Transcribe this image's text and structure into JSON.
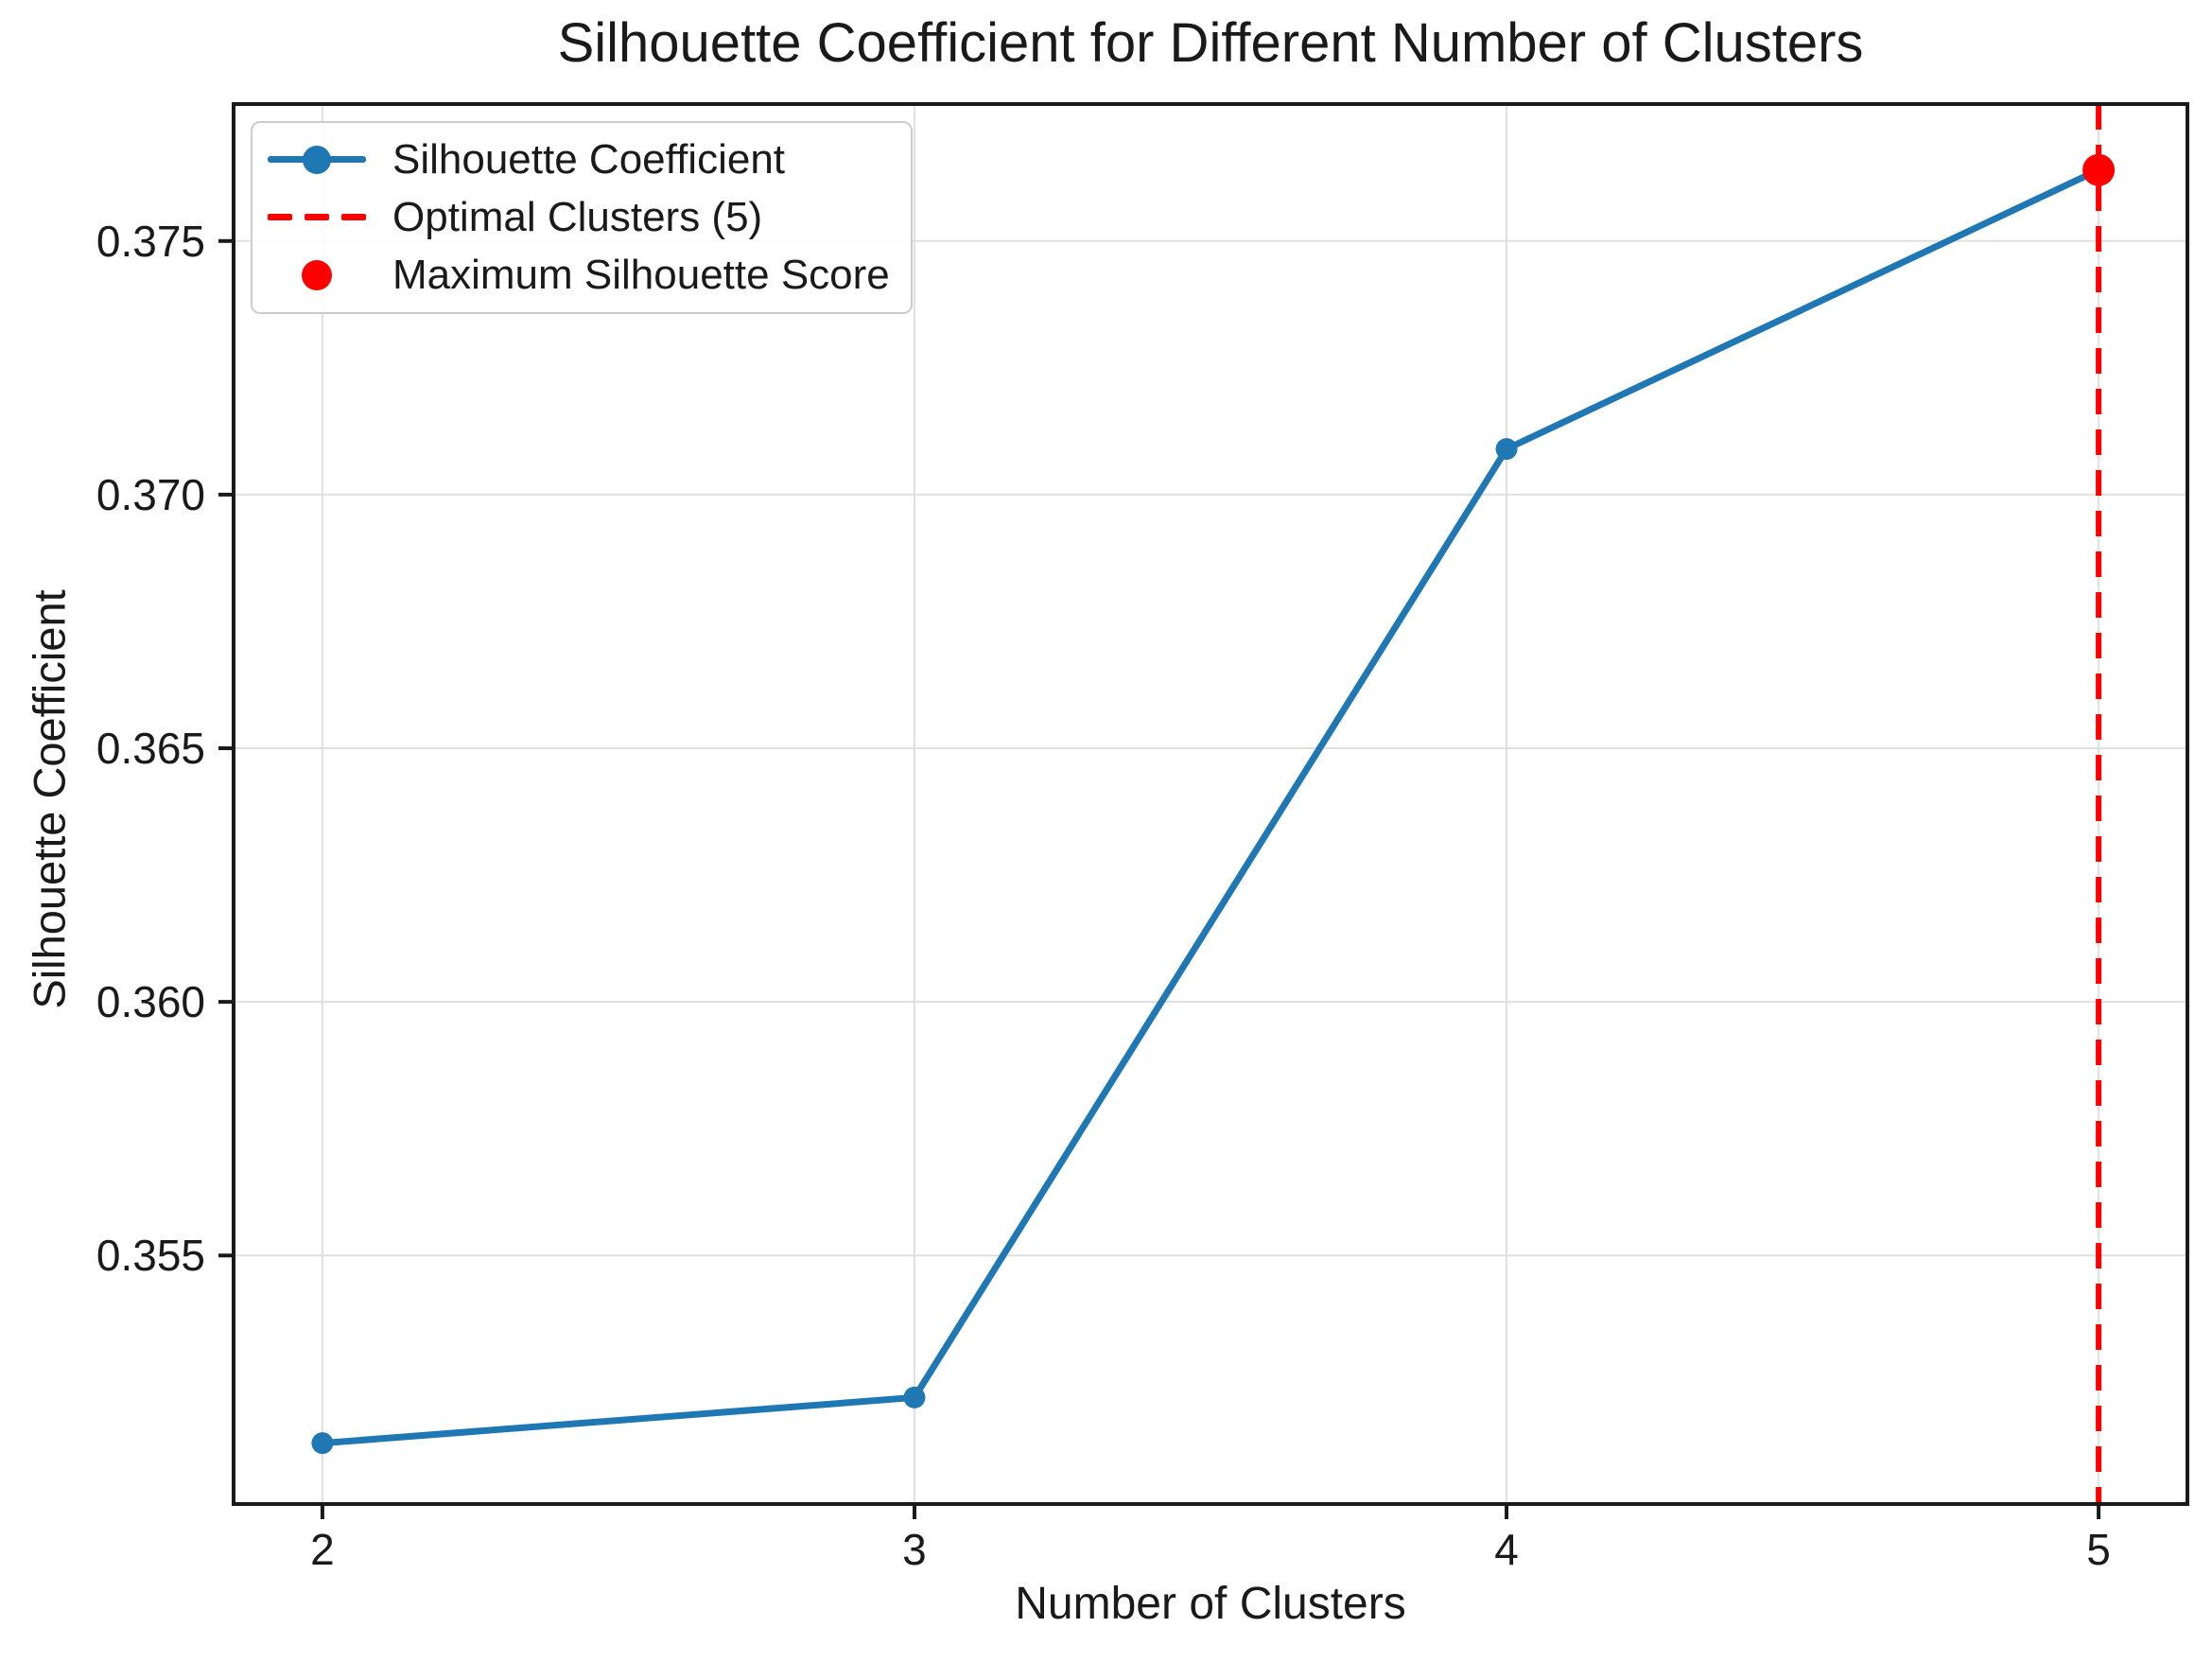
{
  "chart_data": {
    "type": "line",
    "title": "Silhouette Coefficient for Different Number of Clusters",
    "xlabel": "Number of Clusters",
    "ylabel": "Silhouette Coefficient",
    "x": [
      2,
      3,
      4,
      5
    ],
    "series": [
      {
        "name": "Silhouette Coefficient",
        "values": [
          0.3513,
          0.3522,
          0.3709,
          0.3764
        ]
      }
    ],
    "xlim": [
      1.85,
      5.15
    ],
    "ylim": [
      0.3501,
      0.3777
    ],
    "xticks": [
      {
        "value": 2,
        "label": "2"
      },
      {
        "value": 3,
        "label": "3"
      },
      {
        "value": 4,
        "label": "4"
      },
      {
        "value": 5,
        "label": "5"
      }
    ],
    "yticks": [
      {
        "value": 0.355,
        "label": "0.355"
      },
      {
        "value": 0.36,
        "label": "0.360"
      },
      {
        "value": 0.365,
        "label": "0.365"
      },
      {
        "value": 0.37,
        "label": "0.370"
      },
      {
        "value": 0.375,
        "label": "0.375"
      }
    ],
    "grid": true,
    "optimal_clusters_vline": {
      "x": 5,
      "style": "dashed"
    },
    "max_point": {
      "x": 5,
      "y": 0.3764
    },
    "legend": {
      "position": "upper-left",
      "entries": [
        {
          "label": "Silhouette Coefficient",
          "glyph": "line-with-marker"
        },
        {
          "label": "Optimal Clusters (5)",
          "glyph": "dashed-line"
        },
        {
          "label": "Maximum Silhouette Score",
          "glyph": "dot"
        }
      ]
    },
    "colors": {
      "series_blue": "#1f77b4",
      "optimal_red": "#ff0000",
      "grid": "#e0e0e0",
      "spine": "#1a1a1a",
      "text": "#1a1a1a",
      "legend_border": "#cccccc"
    }
  }
}
